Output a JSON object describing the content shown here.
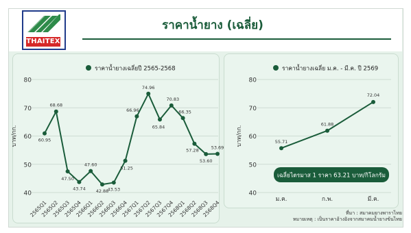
{
  "brand": {
    "logo_text": "THAITEX"
  },
  "header": {
    "title": "ราคาน้ำยาง (เฉลี่ย)"
  },
  "colors": {
    "line": "#1a5c3a",
    "grid": "#c5d4ca",
    "panel": "#eaf5ee",
    "badge": "#1a5c3a"
  },
  "chart_data": [
    {
      "type": "line",
      "title": "ราคาน้ำยางเฉลี่ยปี 2565-2568",
      "ylabel": "บาท/กก.",
      "ylim": [
        40,
        80
      ],
      "yticks": [
        40,
        50,
        60,
        70,
        80
      ],
      "categories": [
        "2565Q1",
        "2565Q2",
        "2565Q3",
        "2565Q4",
        "2566Q1",
        "2566Q2",
        "2566Q3",
        "2566Q4",
        "2567Q1",
        "2567Q2",
        "2567Q3",
        "2567Q4",
        "2568Q1",
        "2568Q2",
        "2568Q3",
        "2568Q4"
      ],
      "values": [
        60.95,
        68.68,
        47.5,
        43.74,
        47.6,
        42.88,
        43.53,
        51.25,
        66.96,
        74.96,
        65.84,
        70.83,
        66.35,
        57.28,
        53.6,
        53.69
      ],
      "labels": [
        "60.95",
        "68.68",
        "47.50",
        "43.74",
        "47.60",
        "42.88",
        "43.53",
        "51.25",
        "66.96",
        "74.96",
        "65.84",
        "70.83",
        "66.35",
        "57.28",
        "53.60",
        "53.69"
      ]
    },
    {
      "type": "line",
      "title": "ราคาน้ำยางเฉลี่ย ม.ค. - มี.ค. ปี 2569",
      "ylabel": "บาท/กก.",
      "ylim": [
        40,
        80
      ],
      "yticks": [
        40,
        50,
        60,
        70,
        80
      ],
      "categories": [
        "ม.ค.",
        "ก.พ.",
        "มี.ค."
      ],
      "values": [
        55.71,
        61.88,
        72.04
      ],
      "labels": [
        "55.71",
        "61.88",
        "72.04"
      ],
      "annotation": "เฉลี่ยไตรมาส 1 ราคา 63.21 บาท/กิโลกรัม"
    }
  ],
  "footer": {
    "source": "ที่มา : สมาคมยางพาราไทย",
    "note": "หมายเหตุ : เป็นราคาอ้างอิงจากสมาคมน้ำยางข้นไทย"
  }
}
